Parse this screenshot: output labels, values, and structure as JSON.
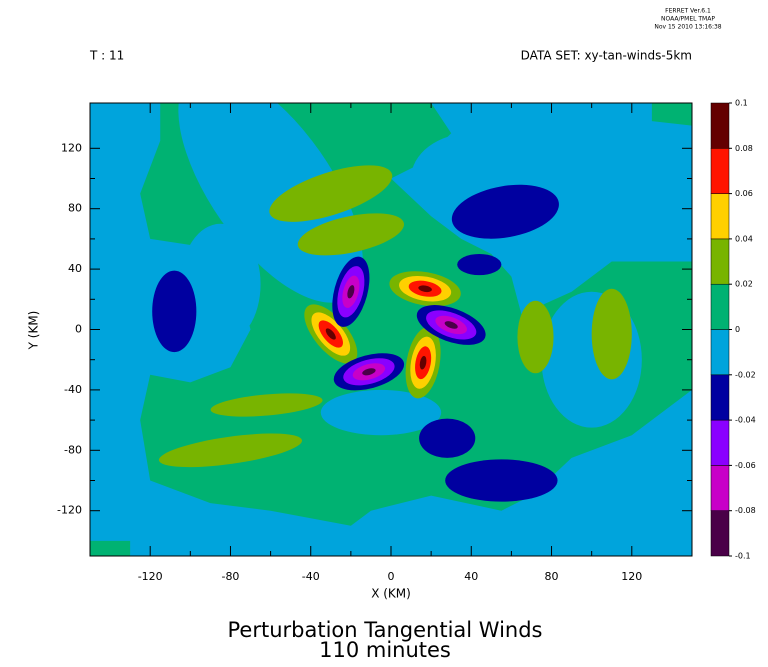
{
  "chart_data": {
    "type": "contour",
    "header": [
      "FERRET Ver.6.1",
      "NOAA/PMEL TMAP",
      "Nov 15 2010 13:16:38"
    ],
    "time_label": "T : 11",
    "dataset_label": "DATA SET: xy-tan-winds-5km",
    "title": "Perturbation Tangential Winds",
    "subtitle": "110 minutes",
    "xlabel": "X (KM)",
    "ylabel": "Y (KM)",
    "xlim": [
      -150,
      150
    ],
    "ylim": [
      -150,
      150
    ],
    "xticks": [
      -120,
      -80,
      -40,
      0,
      40,
      80,
      120
    ],
    "yticks": [
      -120,
      -80,
      -40,
      0,
      40,
      80,
      120
    ],
    "levels": [
      -0.1,
      -0.08,
      -0.06,
      -0.04,
      -0.02,
      0,
      0.02,
      0.04,
      0.06,
      0.08,
      0.1
    ],
    "colors": [
      "#4a0048",
      "#c800c8",
      "#8a00ff",
      "#0000a0",
      "#00a4dc",
      "#00b272",
      "#78b400",
      "#ffd000",
      "#ff1400",
      "#640000"
    ]
  }
}
